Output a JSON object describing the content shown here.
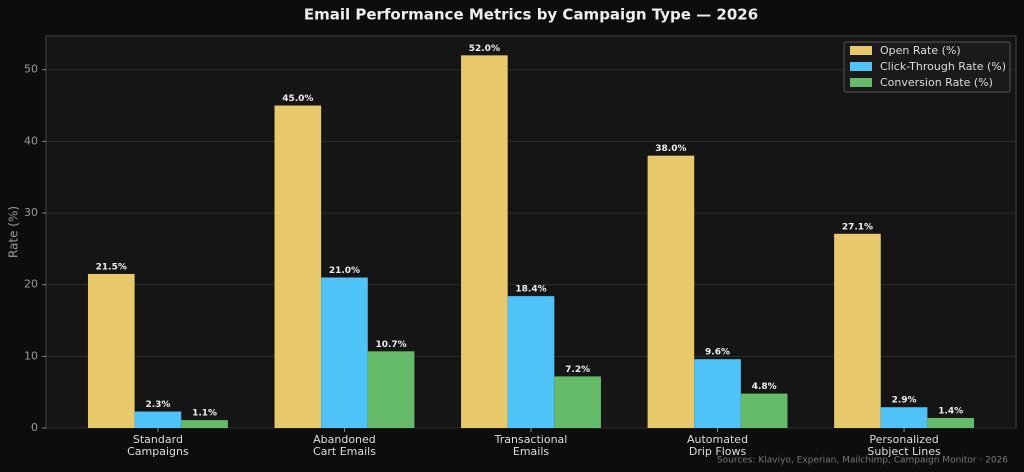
{
  "chart_data": {
    "type": "bar",
    "title": "Email Performance Metrics by Campaign Type — 2026",
    "y_label": "Rate (%)",
    "source": "Sources: Klaviyo, Experian, Mailchimp, Campaign Monitor · 2026",
    "categories": [
      "Standard\nCampaigns",
      "Abandoned\nCart Emails",
      "Transactional\nEmails",
      "Automated\nDrip Flows",
      "Personalized\nSubject Lines"
    ],
    "series": [
      {
        "name": "Open Rate (%)",
        "color": "#e8c96b",
        "values": [
          21.5,
          45.0,
          52.0,
          38.0,
          27.1
        ],
        "value_labels": [
          "21.5%",
          "45.0%",
          "52.0%",
          "38.0%",
          "27.1%"
        ]
      },
      {
        "name": "Click-Through Rate (%)",
        "color": "#4fc3f7",
        "values": [
          2.3,
          21.0,
          18.4,
          9.6,
          2.9
        ],
        "value_labels": [
          "2.3%",
          "21.0%",
          "18.4%",
          "9.6%",
          "2.9%"
        ]
      },
      {
        "name": "Conversion Rate (%)",
        "color": "#66bb6a",
        "values": [
          1.1,
          10.7,
          7.2,
          4.8,
          1.4
        ],
        "value_labels": [
          "1.1%",
          "10.7%",
          "7.2%",
          "4.8%",
          "1.4%"
        ]
      }
    ],
    "ylim": [
      0,
      54.7
    ],
    "yticks": [
      0,
      10,
      20,
      30,
      40,
      50
    ],
    "grid": true,
    "legend": "upper right"
  }
}
